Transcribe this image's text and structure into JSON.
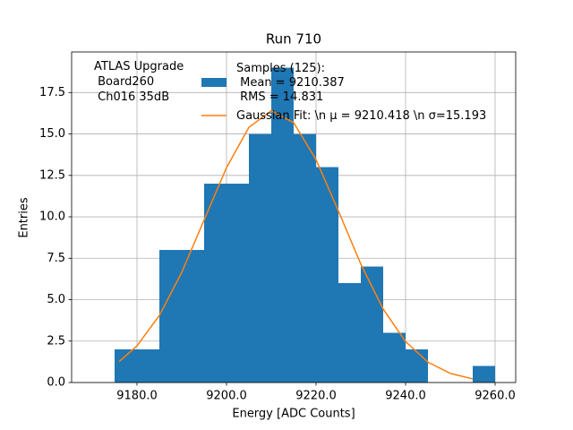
{
  "chart_data": {
    "type": "histogram",
    "title": "Run 710",
    "xlabel": "Energy [ADC Counts]",
    "ylabel": "Entries",
    "annotation": [
      "ATLAS Upgrade",
      " Board260",
      " Ch016 35dB"
    ],
    "series": [
      {
        "type": "histogram",
        "name": "Samples (125):\n Mean = 9210.387\n RMS = 14.831",
        "color": "#1f77b4",
        "bins": [
          9175,
          9180,
          9185,
          9190,
          9195,
          9200,
          9205,
          9210,
          9215,
          9220,
          9225,
          9230,
          9235,
          9240,
          9245,
          9250,
          9255,
          9260
        ],
        "values": [
          2,
          2,
          8,
          8,
          12,
          12,
          15,
          19,
          15,
          13,
          6,
          7,
          3,
          2,
          0,
          0,
          1
        ]
      },
      {
        "type": "line",
        "name": "Gaussian Fit: \\n μ = 9210.418 \\n σ=15.193",
        "color": "#ff7f0e",
        "x": [
          9176,
          9180,
          9185,
          9190,
          9195,
          9200,
          9205,
          9210,
          9215,
          9220,
          9225,
          9230,
          9235,
          9240,
          9245,
          9250,
          9255
        ],
        "values": [
          1.26,
          2.21,
          4.05,
          6.65,
          9.81,
          12.97,
          15.4,
          16.4,
          15.68,
          13.45,
          10.35,
          7.15,
          4.43,
          2.47,
          1.23,
          0.55,
          0.22
        ]
      }
    ],
    "xlim": [
      9165.4,
      9264.6
    ],
    "ylim": [
      0,
      19.95
    ],
    "xticks": [
      {
        "value": 9180,
        "label": "9180.0"
      },
      {
        "value": 9200,
        "label": "9200.0"
      },
      {
        "value": 9220,
        "label": "9220.0"
      },
      {
        "value": 9240,
        "label": "9240.0"
      },
      {
        "value": 9260,
        "label": "9260.0"
      }
    ],
    "yticks": [
      {
        "value": 0,
        "label": "0.0"
      },
      2.5,
      {
        "value": 5,
        "label": "5.0"
      },
      7.5,
      {
        "value": 10,
        "label": "10.0"
      },
      12.5,
      {
        "value": 15,
        "label": "15.0"
      },
      17.5
    ],
    "grid": true,
    "legend_loc": "upper center"
  }
}
